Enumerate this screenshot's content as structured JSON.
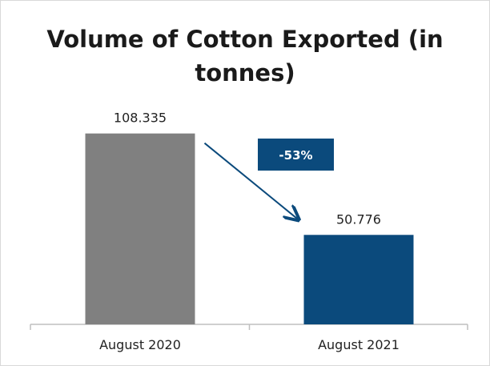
{
  "chart_data": {
    "type": "bar",
    "title": "Volume of Cotton Exported (in tonnes)",
    "categories": [
      "August 2020",
      "August 2021"
    ],
    "values": [
      108.335,
      50.776
    ],
    "value_labels": [
      "108.335",
      "50.776"
    ],
    "bar_colors": [
      "#808080",
      "#0b4a7c"
    ],
    "annotation": {
      "label": "-53%",
      "color": "#0b4a7c",
      "arrow_from": "August 2020",
      "arrow_to": "August 2021"
    },
    "ylim": [
      0,
      120
    ],
    "grid": false,
    "legend": "none"
  }
}
